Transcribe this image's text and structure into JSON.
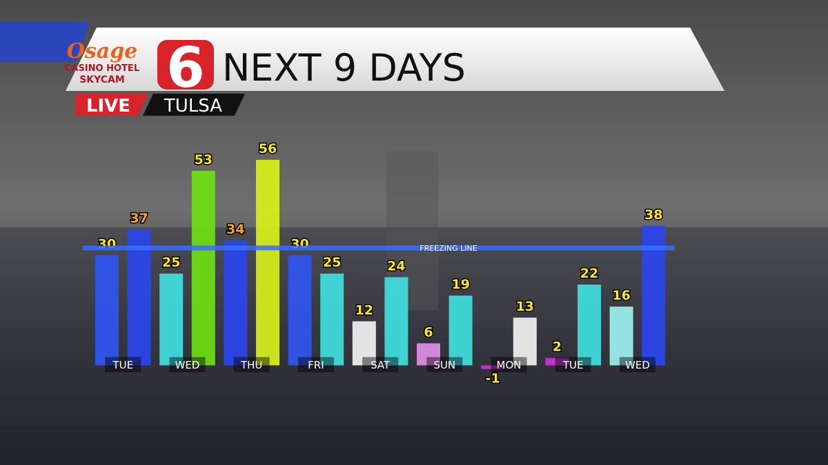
{
  "header": {
    "brand": "Osage",
    "brand_sub": "CASINO HOTEL",
    "brand_cam": "SKYCAM",
    "channel": "6",
    "live": "LIVE",
    "city": "TULSA"
  },
  "chart_data": {
    "type": "bar",
    "title": "NEXT 9 DAYS",
    "days": [
      "TUE",
      "WED",
      "THU",
      "FRI",
      "SAT",
      "SUN",
      "MON",
      "TUE",
      "WED"
    ],
    "values": [
      30,
      37,
      25,
      53,
      34,
      56,
      30,
      25,
      12,
      24,
      6,
      19,
      -1,
      13,
      2,
      22,
      16,
      38
    ],
    "colors": [
      "#2f55f0",
      "#2a45ee",
      "#3fe0e0",
      "#6ee012",
      "#2a45ee",
      "#d8f018",
      "#2f55f0",
      "#3fe0e0",
      "#f2f2f2",
      "#3fe0e0",
      "#e08ee8",
      "#3fe0e0",
      "#d030d8",
      "#f2f2f2",
      "#d030d8",
      "#3fe0e0",
      "#9ef0f0",
      "#2a45ee"
    ],
    "value_label_colors": [
      "#ffe81a",
      "#f5a623",
      "#ffe81a",
      "#ffe81a",
      "#f5a623",
      "#ffe81a",
      "#ffe81a",
      "#ffe81a",
      "#ffe81a",
      "#ffe81a",
      "#ffe81a",
      "#ffe81a",
      "#ffe81a",
      "#ffe81a",
      "#ffe81a",
      "#ffe81a",
      "#ffe81a",
      "#ffe81a"
    ],
    "freezing_line": {
      "value": 32,
      "label": "FREEZING LINE"
    },
    "ylim": [
      -5,
      65
    ]
  }
}
